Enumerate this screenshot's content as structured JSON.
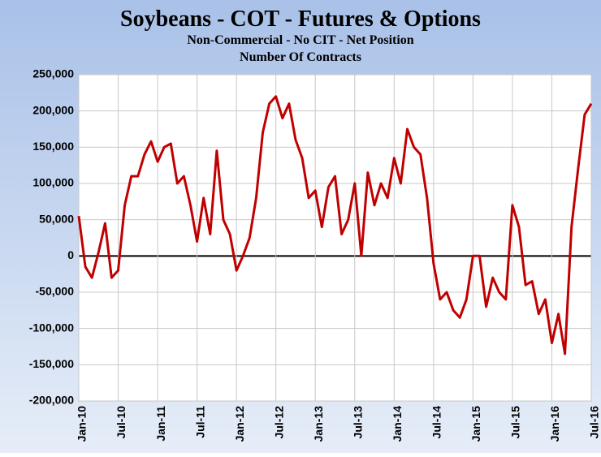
{
  "chart_data": {
    "type": "line",
    "title": "Soybeans - COT - Futures & Options",
    "subtitle": [
      "Non-Commercial - No CIT - Net Position",
      "Number Of Contracts"
    ],
    "x": [
      "2010-01",
      "2010-02",
      "2010-03",
      "2010-04",
      "2010-05",
      "2010-06",
      "2010-07",
      "2010-08",
      "2010-09",
      "2010-10",
      "2010-11",
      "2010-12",
      "2011-01",
      "2011-02",
      "2011-03",
      "2011-04",
      "2011-05",
      "2011-06",
      "2011-07",
      "2011-08",
      "2011-09",
      "2011-10",
      "2011-11",
      "2011-12",
      "2012-01",
      "2012-02",
      "2012-03",
      "2012-04",
      "2012-05",
      "2012-06",
      "2012-07",
      "2012-08",
      "2012-09",
      "2012-10",
      "2012-11",
      "2012-12",
      "2013-01",
      "2013-02",
      "2013-03",
      "2013-04",
      "2013-05",
      "2013-06",
      "2013-07",
      "2013-08",
      "2013-09",
      "2013-10",
      "2013-11",
      "2013-12",
      "2014-01",
      "2014-02",
      "2014-03",
      "2014-04",
      "2014-05",
      "2014-06",
      "2014-07",
      "2014-08",
      "2014-09",
      "2014-10",
      "2014-11",
      "2014-12",
      "2015-01",
      "2015-02",
      "2015-03",
      "2015-04",
      "2015-05",
      "2015-06",
      "2015-07",
      "2015-08",
      "2015-09",
      "2015-10",
      "2015-11",
      "2015-12",
      "2016-01",
      "2016-02",
      "2016-03",
      "2016-04",
      "2016-05",
      "2016-06",
      "2016-07"
    ],
    "series": [
      {
        "name": "Net Position",
        "color": "#c00000",
        "values": [
          55000,
          -15000,
          -30000,
          5000,
          45000,
          -30000,
          -20000,
          70000,
          110000,
          110000,
          140000,
          158000,
          130000,
          150000,
          155000,
          100000,
          110000,
          70000,
          20000,
          80000,
          30000,
          145000,
          50000,
          30000,
          -20000,
          0,
          25000,
          80000,
          170000,
          210000,
          220000,
          190000,
          210000,
          160000,
          135000,
          80000,
          90000,
          40000,
          95000,
          110000,
          30000,
          50000,
          100000,
          0,
          115000,
          70000,
          100000,
          80000,
          135000,
          100000,
          175000,
          150000,
          140000,
          80000,
          -10000,
          -60000,
          -50000,
          -75000,
          -85000,
          -60000,
          0,
          0,
          -70000,
          -30000,
          -50000,
          -60000,
          70000,
          40000,
          -40000,
          -35000,
          -80000,
          -60000,
          -120000,
          -80000,
          -135000,
          40000,
          120000,
          195000,
          210000
        ]
      }
    ],
    "xlim": [
      "2010-01",
      "2016-07"
    ],
    "xticks": [
      {
        "value": "2010-01",
        "label": "Jan-10"
      },
      {
        "value": "2010-07",
        "label": "Jul-10"
      },
      {
        "value": "2011-01",
        "label": "Jan-11"
      },
      {
        "value": "2011-07",
        "label": "Jul-11"
      },
      {
        "value": "2012-01",
        "label": "Jan-12"
      },
      {
        "value": "2012-07",
        "label": "Jul-12"
      },
      {
        "value": "2013-01",
        "label": "Jan-13"
      },
      {
        "value": "2013-07",
        "label": "Jul-13"
      },
      {
        "value": "2014-01",
        "label": "Jan-14"
      },
      {
        "value": "2014-07",
        "label": "Jul-14"
      },
      {
        "value": "2015-01",
        "label": "Jan-15"
      },
      {
        "value": "2015-07",
        "label": "Jul-15"
      },
      {
        "value": "2016-01",
        "label": "Jan-16"
      },
      {
        "value": "2016-07",
        "label": "Jul-16"
      }
    ],
    "ylim": [
      -200000,
      250000
    ],
    "yticks": [
      {
        "value": -200000,
        "label": "-200,000"
      },
      {
        "value": -150000,
        "label": "-150,000"
      },
      {
        "value": -100000,
        "label": "-100,000"
      },
      {
        "value": -50000,
        "label": "-50,000"
      },
      0,
      {
        "value": 50000,
        "label": "50,000"
      },
      {
        "value": 100000,
        "label": "100,000"
      },
      {
        "value": 150000,
        "label": "150,000"
      },
      {
        "value": 200000,
        "label": "200,000"
      },
      {
        "value": 250000,
        "label": "250,000"
      }
    ],
    "grid": true
  }
}
